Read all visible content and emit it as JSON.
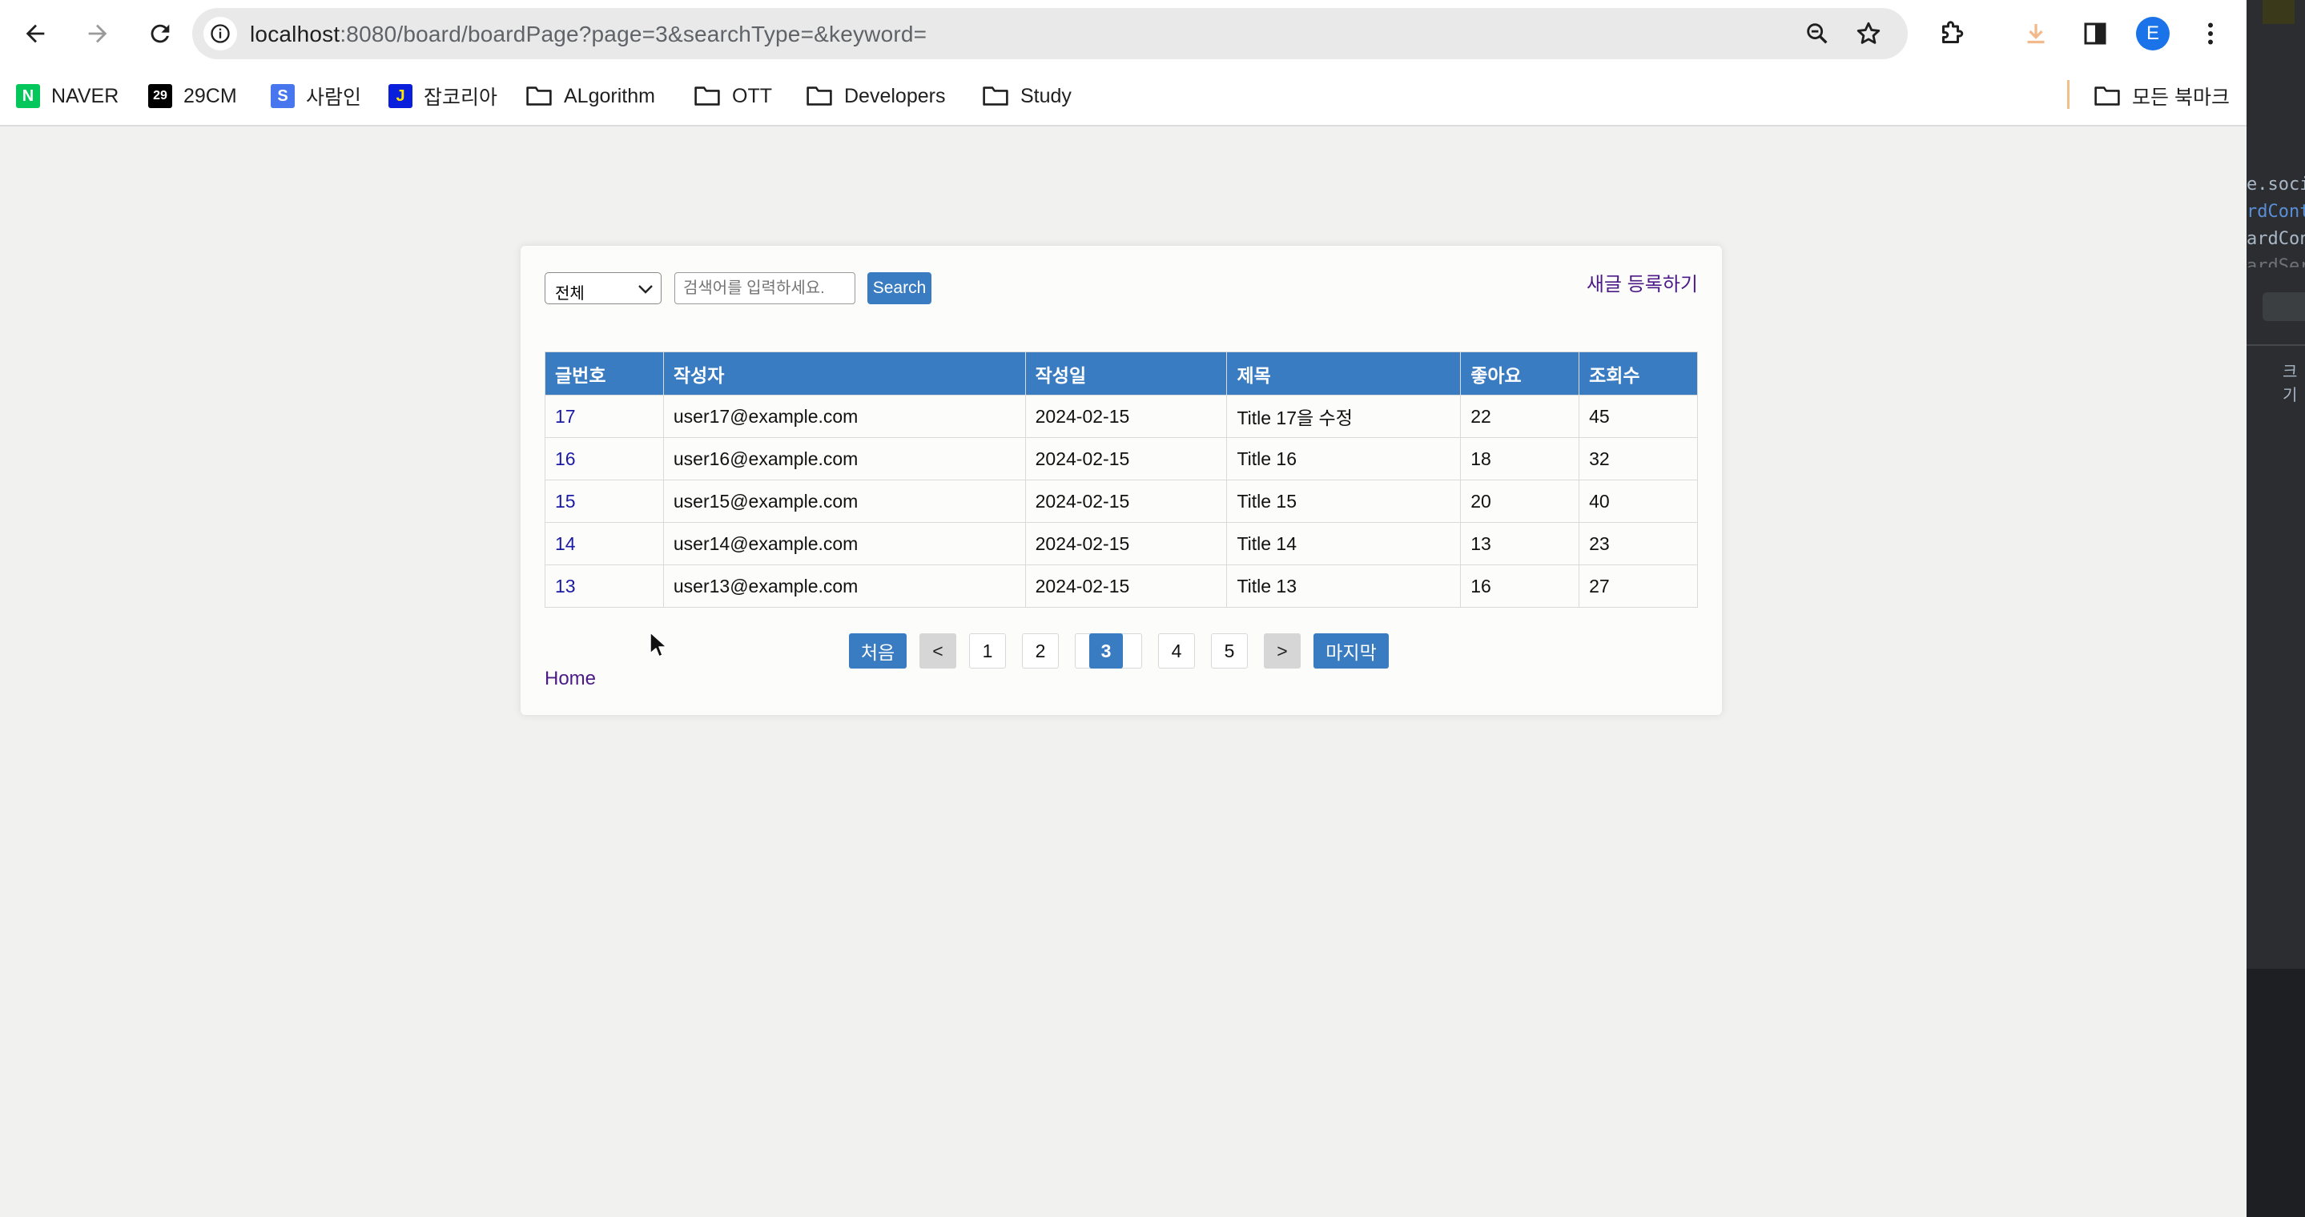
{
  "browser": {
    "url_host": "localhost",
    "url_rest": ":8080/board/boardPage?page=3&searchType=&keyword=",
    "profile_initial": "E",
    "bookmarks": [
      {
        "label": "NAVER",
        "icon": "naver-icon",
        "badge": "N",
        "color": "#03c75a"
      },
      {
        "label": "29CM",
        "icon": "29cm-icon",
        "badge": "29",
        "color": "#000000"
      },
      {
        "label": "사람인",
        "icon": "saramin-icon",
        "badge": "S",
        "color": "#4876ef"
      },
      {
        "label": "잡코리아",
        "icon": "jobkorea-icon",
        "badge": "J",
        "color": "#0a1fdb"
      },
      {
        "label": "ALgorithm",
        "icon": "folder-icon"
      },
      {
        "label": "OTT",
        "icon": "folder-icon"
      },
      {
        "label": "Developers",
        "icon": "folder-icon"
      },
      {
        "label": "Study",
        "icon": "folder-icon"
      }
    ],
    "all_bookmarks": "모든 북마크"
  },
  "board": {
    "search": {
      "select_value": "전체",
      "placeholder": "검색어를 입력하세요.",
      "button": "Search"
    },
    "new_post": "새글 등록하기",
    "columns": [
      "글번호",
      "작성자",
      "작성일",
      "제목",
      "좋아요",
      "조회수"
    ],
    "rows": [
      {
        "no": "17",
        "writer": "user17@example.com",
        "date": "2024-02-15",
        "title": "Title 17을 수정",
        "likes": "22",
        "views": "45"
      },
      {
        "no": "16",
        "writer": "user16@example.com",
        "date": "2024-02-15",
        "title": "Title 16",
        "likes": "18",
        "views": "32"
      },
      {
        "no": "15",
        "writer": "user15@example.com",
        "date": "2024-02-15",
        "title": "Title 15",
        "likes": "20",
        "views": "40"
      },
      {
        "no": "14",
        "writer": "user14@example.com",
        "date": "2024-02-15",
        "title": "Title 14",
        "likes": "13",
        "views": "23"
      },
      {
        "no": "13",
        "writer": "user13@example.com",
        "date": "2024-02-15",
        "title": "Title 13",
        "likes": "16",
        "views": "27"
      }
    ],
    "pagination": {
      "first": "처음",
      "prev": "<",
      "pages": [
        "1",
        "2",
        "3",
        "4",
        "5"
      ],
      "current": "3",
      "next": ">",
      "last": "마지막"
    },
    "home": "Home"
  },
  "colors": {
    "accent": "#3a7cc2",
    "link_visited": "#4b1a86",
    "row_number_link": "#1a1aa6"
  },
  "side_window": {
    "code_lines": [
      "e.socia",
      "rdCont",
      "ardCon",
      "ardSer"
    ],
    "label": "크기"
  }
}
